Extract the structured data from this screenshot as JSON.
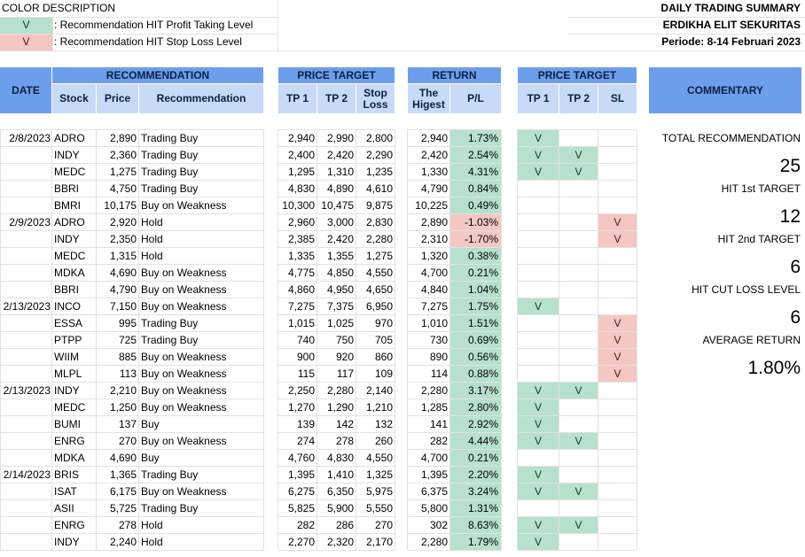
{
  "legend": {
    "title": "COLOR DESCRIPTION",
    "items": [
      {
        "mark": "V",
        "text": ": Recommendation HIT Profit Taking Level",
        "color": "#b7e1cd"
      },
      {
        "mark": "V",
        "text": ": Recommendation HIT Stop Loss Level",
        "color": "#f4c7c3"
      }
    ]
  },
  "report": {
    "title": "DAILY TRADING SUMMARY",
    "company": "ERDIKHA ELIT SEKURITAS",
    "period": "Periode: 8-14  Februari 2023"
  },
  "headers": {
    "date": "DATE",
    "recommendation_group": "RECOMMENDATION",
    "stock": "Stock",
    "price": "Price",
    "recommendation": "Recommendation",
    "price_target_group": "PRICE TARGET",
    "tp1": "TP 1",
    "tp2": "TP 2",
    "stop_loss": "Stop Loss",
    "return_group": "RETURN",
    "the_highest": "The Higest",
    "pl": "P/L",
    "hit_group": "PRICE TARGET",
    "hit_tp1": "TP 1",
    "hit_tp2": "TP 2",
    "hit_sl": "SL",
    "commentary": "COMMENTARY"
  },
  "rows": [
    {
      "date": "2/8/2023",
      "stock": "ADRO",
      "price": "2,890",
      "rec": "Trading Buy",
      "tp1": "2,940",
      "tp2": "2,990",
      "sl": "2,800",
      "high": "2,940",
      "pl": "1.73%",
      "plNeg": false,
      "h1": "V",
      "h2": "",
      "hs": ""
    },
    {
      "date": "",
      "stock": "INDY",
      "price": "2,360",
      "rec": "Trading Buy",
      "tp1": "2,400",
      "tp2": "2,420",
      "sl": "2,290",
      "high": "2,420",
      "pl": "2.54%",
      "plNeg": false,
      "h1": "V",
      "h2": "V",
      "hs": ""
    },
    {
      "date": "",
      "stock": "MEDC",
      "price": "1,275",
      "rec": "Trading Buy",
      "tp1": "1,295",
      "tp2": "1,310",
      "sl": "1,235",
      "high": "1,330",
      "pl": "4.31%",
      "plNeg": false,
      "h1": "V",
      "h2": "V",
      "hs": ""
    },
    {
      "date": "",
      "stock": "BBRI",
      "price": "4,750",
      "rec": "Trading Buy",
      "tp1": "4,830",
      "tp2": "4,890",
      "sl": "4,610",
      "high": "4,790",
      "pl": "0.84%",
      "plNeg": false,
      "h1": "",
      "h2": "",
      "hs": ""
    },
    {
      "date": "",
      "stock": "BMRI",
      "price": "10,175",
      "rec": "Buy on Weakness",
      "tp1": "10,300",
      "tp2": "10,475",
      "sl": "9,875",
      "high": "10,225",
      "pl": "0.49%",
      "plNeg": false,
      "h1": "",
      "h2": "",
      "hs": ""
    },
    {
      "date": "2/9/2023",
      "stock": "ADRO",
      "price": "2,920",
      "rec": "Hold",
      "tp1": "2,960",
      "tp2": "3,000",
      "sl": "2,830",
      "high": "2,890",
      "pl": "-1.03%",
      "plNeg": true,
      "h1": "",
      "h2": "",
      "hs": "V"
    },
    {
      "date": "",
      "stock": "INDY",
      "price": "2,350",
      "rec": "Hold",
      "tp1": "2,385",
      "tp2": "2,420",
      "sl": "2,280",
      "high": "2,310",
      "pl": "-1.70%",
      "plNeg": true,
      "h1": "",
      "h2": "",
      "hs": "V"
    },
    {
      "date": "",
      "stock": "MEDC",
      "price": "1,315",
      "rec": "Hold",
      "tp1": "1,335",
      "tp2": "1,355",
      "sl": "1,275",
      "high": "1,320",
      "pl": "0.38%",
      "plNeg": false,
      "h1": "",
      "h2": "",
      "hs": ""
    },
    {
      "date": "",
      "stock": "MDKA",
      "price": "4,690",
      "rec": "Buy on Weakness",
      "tp1": "4,775",
      "tp2": "4,850",
      "sl": "4,550",
      "high": "4,700",
      "pl": "0.21%",
      "plNeg": false,
      "h1": "",
      "h2": "",
      "hs": ""
    },
    {
      "date": "",
      "stock": "BBRI",
      "price": "4,790",
      "rec": "Buy on Weakness",
      "tp1": "4,860",
      "tp2": "4,950",
      "sl": "4,650",
      "high": "4,840",
      "pl": "1.04%",
      "plNeg": false,
      "h1": "",
      "h2": "",
      "hs": ""
    },
    {
      "date": "2/13/2023",
      "stock": "INCO",
      "price": "7,150",
      "rec": "Buy on Weakness",
      "tp1": "7,275",
      "tp2": "7,375",
      "sl": "6,950",
      "high": "7,275",
      "pl": "1.75%",
      "plNeg": false,
      "h1": "V",
      "h2": "",
      "hs": ""
    },
    {
      "date": "",
      "stock": "ESSA",
      "price": "995",
      "rec": "Trading Buy",
      "tp1": "1,015",
      "tp2": "1,025",
      "sl": "970",
      "high": "1,010",
      "pl": "1.51%",
      "plNeg": false,
      "h1": "",
      "h2": "",
      "hs": "V"
    },
    {
      "date": "",
      "stock": "PTPP",
      "price": "725",
      "rec": "Trading Buy",
      "tp1": "740",
      "tp2": "750",
      "sl": "705",
      "high": "730",
      "pl": "0.69%",
      "plNeg": false,
      "h1": "",
      "h2": "",
      "hs": "V"
    },
    {
      "date": "",
      "stock": "WIIM",
      "price": "885",
      "rec": "Buy on Weakness",
      "tp1": "900",
      "tp2": "920",
      "sl": "860",
      "high": "890",
      "pl": "0.56%",
      "plNeg": false,
      "h1": "",
      "h2": "",
      "hs": "V"
    },
    {
      "date": "",
      "stock": "MLPL",
      "price": "113",
      "rec": "Buy on Weakness",
      "tp1": "115",
      "tp2": "117",
      "sl": "109",
      "high": "114",
      "pl": "0.88%",
      "plNeg": false,
      "h1": "",
      "h2": "",
      "hs": "V"
    },
    {
      "date": "2/13/2023",
      "stock": "INDY",
      "price": "2,210",
      "rec": "Buy on Weakness",
      "tp1": "2,250",
      "tp2": "2,280",
      "sl": "2,140",
      "high": "2,280",
      "pl": "3.17%",
      "plNeg": false,
      "h1": "V",
      "h2": "V",
      "hs": ""
    },
    {
      "date": "",
      "stock": "MEDC",
      "price": "1,250",
      "rec": "Buy on Weakness",
      "tp1": "1,270",
      "tp2": "1,290",
      "sl": "1,210",
      "high": "1,285",
      "pl": "2.80%",
      "plNeg": false,
      "h1": "V",
      "h2": "",
      "hs": ""
    },
    {
      "date": "",
      "stock": "BUMI",
      "price": "137",
      "rec": "Buy",
      "tp1": "139",
      "tp2": "142",
      "sl": "132",
      "high": "141",
      "pl": "2.92%",
      "plNeg": false,
      "h1": "V",
      "h2": "",
      "hs": ""
    },
    {
      "date": "",
      "stock": "ENRG",
      "price": "270",
      "rec": "Buy on Weakness",
      "tp1": "274",
      "tp2": "278",
      "sl": "260",
      "high": "282",
      "pl": "4.44%",
      "plNeg": false,
      "h1": "V",
      "h2": "V",
      "hs": ""
    },
    {
      "date": "",
      "stock": "MDKA",
      "price": "4,690",
      "rec": "Buy",
      "tp1": "4,760",
      "tp2": "4,830",
      "sl": "4,550",
      "high": "4,700",
      "pl": "0.21%",
      "plNeg": false,
      "h1": "",
      "h2": "",
      "hs": ""
    },
    {
      "date": "2/14/2023",
      "stock": "BRIS",
      "price": "1,365",
      "rec": "Trading Buy",
      "tp1": "1,395",
      "tp2": "1,410",
      "sl": "1,325",
      "high": "1,395",
      "pl": "2.20%",
      "plNeg": false,
      "h1": "V",
      "h2": "",
      "hs": ""
    },
    {
      "date": "",
      "stock": "ISAT",
      "price": "6,175",
      "rec": "Buy on Weakness",
      "tp1": "6,275",
      "tp2": "6,350",
      "sl": "5,975",
      "high": "6,375",
      "pl": "3.24%",
      "plNeg": false,
      "h1": "V",
      "h2": "V",
      "hs": ""
    },
    {
      "date": "",
      "stock": "ASII",
      "price": "5,725",
      "rec": "Trading Buy",
      "tp1": "5,825",
      "tp2": "5,900",
      "sl": "5,550",
      "high": "5,800",
      "pl": "1.31%",
      "plNeg": false,
      "h1": "",
      "h2": "",
      "hs": ""
    },
    {
      "date": "",
      "stock": "ENRG",
      "price": "278",
      "rec": "Hold",
      "tp1": "282",
      "tp2": "286",
      "sl": "270",
      "high": "302",
      "pl": "8.63%",
      "plNeg": false,
      "h1": "V",
      "h2": "V",
      "hs": ""
    },
    {
      "date": "",
      "stock": "INDY",
      "price": "2,240",
      "rec": "Hold",
      "tp1": "2,270",
      "tp2": "2,320",
      "sl": "2,170",
      "high": "2,280",
      "pl": "1.79%",
      "plNeg": false,
      "h1": "V",
      "h2": "",
      "hs": ""
    }
  ],
  "commentary": {
    "total_label": "TOTAL RECOMMENDATION",
    "total_value": "25",
    "hit1_label": "HIT 1st TARGET",
    "hit1_value": "12",
    "hit2_label": "HIT 2nd TARGET",
    "hit2_value": "6",
    "cut_label": "HIT CUT LOSS LEVEL",
    "cut_value": "6",
    "avg_label": "AVERAGE RETURN",
    "avg_value": "1.80%"
  },
  "colors": {
    "header_dark": "#6d9eeb",
    "header_light": "#c9daf8",
    "profit_green": "#b7e1cd",
    "loss_red": "#f4c7c3"
  }
}
